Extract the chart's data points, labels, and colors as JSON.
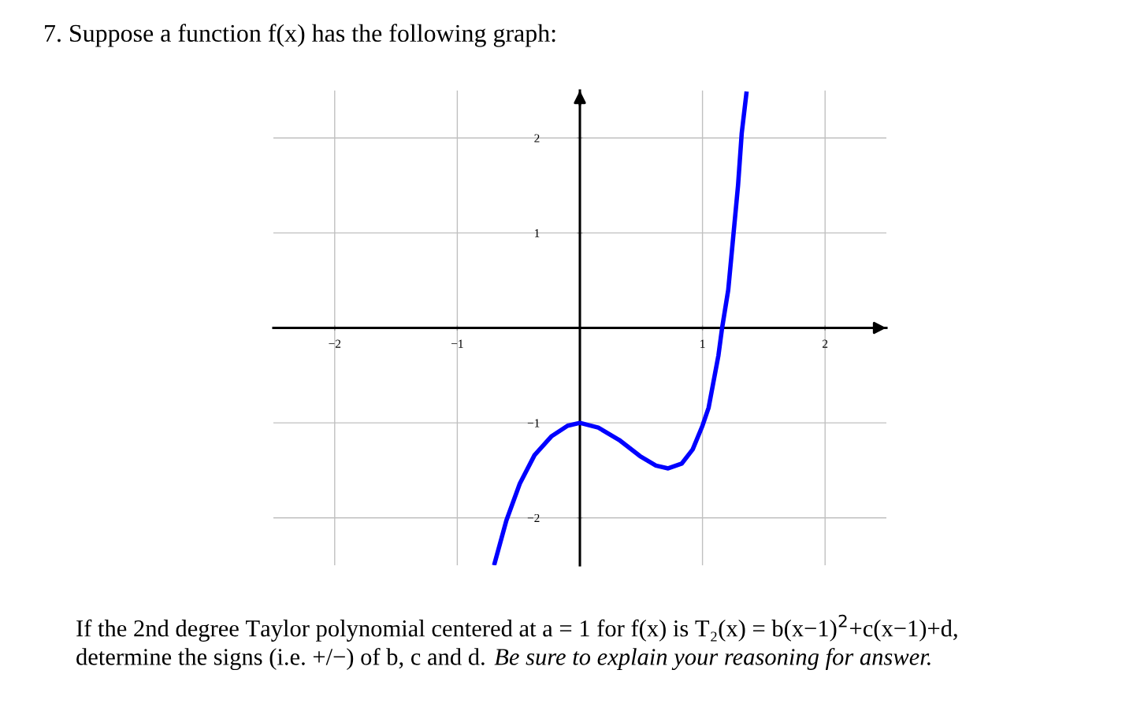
{
  "chart_data": {
    "type": "line",
    "title": "7. Suppose a function f(x) has the following graph:",
    "annotations": [
      "If the 2nd degree Taylor polynomial centered at a = 1 for f(x) is T₂(x) = b(x−1)$^{2}$+c(x−1)+d,",
      "determine the signs (i.e. +/−) of b, c and d.",
      "Be sure to explain your reasoning for answer."
    ],
    "x": [
      -0.7,
      -0.6,
      -0.49,
      -0.37,
      -0.23,
      -0.1,
      0,
      0.15,
      0.32,
      0.49,
      0.62,
      0.72,
      0.83,
      0.92,
      1.0,
      1.05,
      1.13,
      1.16,
      1.21,
      1.25,
      1.29,
      1.32,
      1.36
    ],
    "series": [
      {
        "color": "#0000ff",
        "values": [
          -2.5,
          -2.03,
          -1.64,
          -1.34,
          -1.14,
          -1.03,
          -1.0,
          -1.05,
          -1.18,
          -1.35,
          -1.45,
          -1.48,
          -1.43,
          -1.28,
          -1.03,
          -0.84,
          -0.29,
          0,
          0.4,
          0.95,
          1.5,
          2.05,
          2.49
        ]
      }
    ],
    "xlim": [
      -2.5,
      2.5
    ],
    "ylim": [
      -2.5,
      2.5
    ],
    "xticks": [
      -2,
      -1,
      1,
      2
    ],
    "yticks": [
      2,
      1,
      -1,
      -2
    ],
    "grid": true,
    "marker": "none",
    "line_style": "solid",
    "legend": false
  }
}
